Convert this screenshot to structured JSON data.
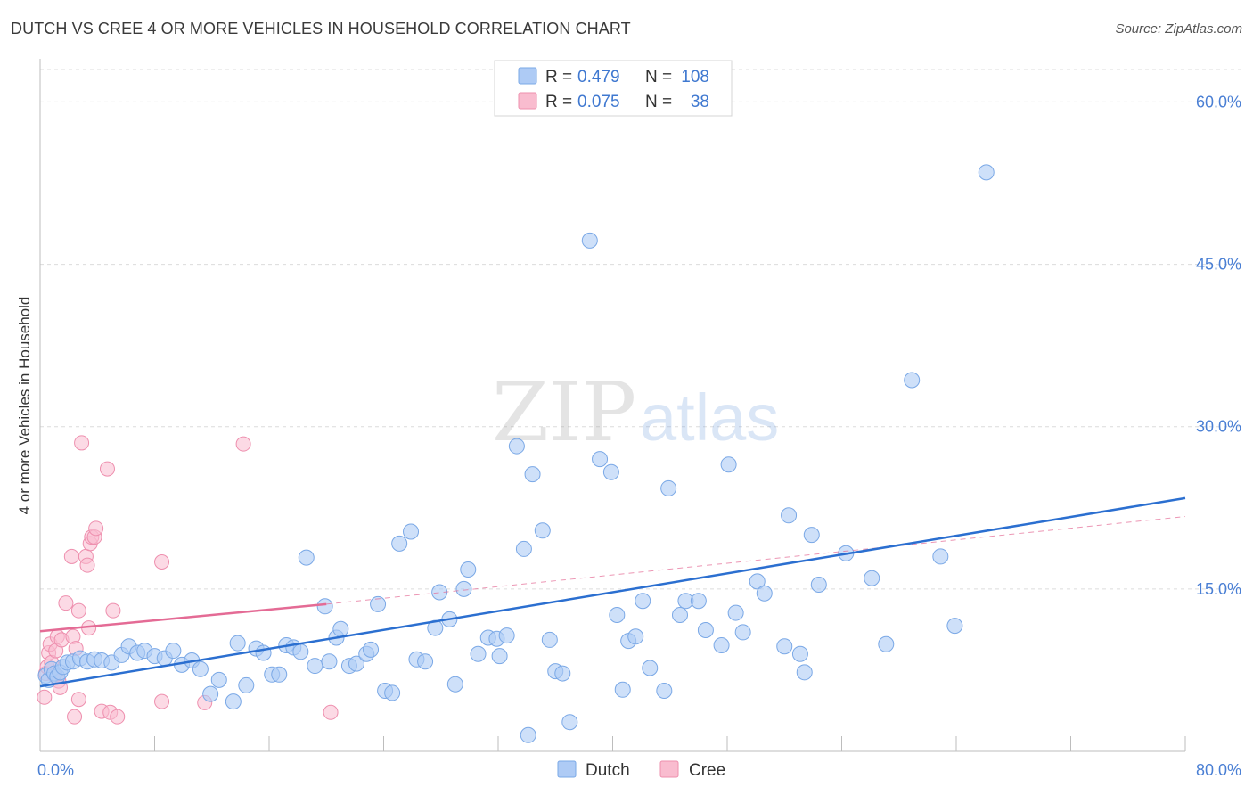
{
  "header": {
    "title": "DUTCH VS CREE 4 OR MORE VEHICLES IN HOUSEHOLD CORRELATION CHART",
    "source": "Source: ZipAtlas.com"
  },
  "watermark": {
    "zip": "ZIP",
    "atlas": "atlas"
  },
  "legend": {
    "rows": [
      {
        "r_label": "R = ",
        "r_value": "0.479",
        "n_label": "N = ",
        "n_value": "108",
        "swatch": "#aecbf5"
      },
      {
        "r_label": "R = ",
        "r_value": "0.075",
        "n_label": "N = ",
        "n_value": "38",
        "swatch": "#f9bccf"
      }
    ]
  },
  "bottom_legend": [
    "Dutch",
    "Cree"
  ],
  "colors": {
    "dutch_fill": "#aecbf5",
    "dutch_stroke": "#7aa8e6",
    "dutch_line": "#2b6fd0",
    "cree_fill": "#f9bccf",
    "cree_stroke": "#ee8fae",
    "cree_line": "#e46b95",
    "grid": "#dcdcdc",
    "accent": "#4a7fd4"
  },
  "chart_data": {
    "type": "scatter",
    "title": "DUTCH VS CREE 4 OR MORE VEHICLES IN HOUSEHOLD CORRELATION CHART",
    "xlabel": "",
    "ylabel": "4 or more Vehicles in Household",
    "xlim": [
      0,
      80
    ],
    "ylim": [
      0,
      63
    ],
    "x_tick_labels": [
      "0.0%",
      "80.0%"
    ],
    "y_ticks": [
      15,
      30,
      45,
      60
    ],
    "y_tick_labels": [
      "15.0%",
      "30.0%",
      "45.0%",
      "60.0%"
    ],
    "grid": true,
    "legend_position": "top-center",
    "series": [
      {
        "name": "Dutch",
        "r": 0.479,
        "n": 108,
        "trend": {
          "x": [
            0,
            80
          ],
          "y": [
            6.0,
            23.4
          ]
        },
        "points": [
          [
            0.4,
            7.0
          ],
          [
            0.6,
            6.6
          ],
          [
            0.8,
            7.6
          ],
          [
            1.0,
            7.2
          ],
          [
            1.2,
            6.9
          ],
          [
            1.4,
            7.3
          ],
          [
            1.6,
            7.8
          ],
          [
            1.9,
            8.2
          ],
          [
            2.3,
            8.3
          ],
          [
            2.8,
            8.6
          ],
          [
            3.3,
            8.3
          ],
          [
            3.8,
            8.5
          ],
          [
            4.3,
            8.4
          ],
          [
            5.0,
            8.2
          ],
          [
            5.7,
            8.9
          ],
          [
            6.2,
            9.7
          ],
          [
            6.8,
            9.1
          ],
          [
            7.3,
            9.3
          ],
          [
            8.0,
            8.8
          ],
          [
            8.7,
            8.6
          ],
          [
            9.3,
            9.3
          ],
          [
            9.9,
            8.0
          ],
          [
            10.6,
            8.4
          ],
          [
            11.2,
            7.6
          ],
          [
            11.9,
            5.3
          ],
          [
            12.5,
            6.6
          ],
          [
            13.5,
            4.6
          ],
          [
            13.8,
            10.0
          ],
          [
            14.4,
            6.1
          ],
          [
            15.1,
            9.5
          ],
          [
            15.6,
            9.1
          ],
          [
            16.2,
            7.1
          ],
          [
            16.7,
            7.1
          ],
          [
            17.2,
            9.8
          ],
          [
            17.7,
            9.6
          ],
          [
            18.2,
            9.2
          ],
          [
            18.6,
            17.9
          ],
          [
            19.2,
            7.9
          ],
          [
            19.9,
            13.4
          ],
          [
            20.2,
            8.3
          ],
          [
            20.7,
            10.5
          ],
          [
            21.0,
            11.3
          ],
          [
            21.6,
            7.9
          ],
          [
            22.1,
            8.1
          ],
          [
            22.8,
            9.0
          ],
          [
            23.1,
            9.4
          ],
          [
            23.6,
            13.6
          ],
          [
            24.1,
            5.6
          ],
          [
            24.6,
            5.4
          ],
          [
            25.1,
            19.2
          ],
          [
            25.9,
            20.3
          ],
          [
            26.3,
            8.5
          ],
          [
            26.9,
            8.3
          ],
          [
            27.6,
            11.4
          ],
          [
            27.9,
            14.7
          ],
          [
            28.6,
            12.2
          ],
          [
            29.0,
            6.2
          ],
          [
            29.6,
            15.0
          ],
          [
            29.9,
            16.8
          ],
          [
            30.6,
            9.0
          ],
          [
            31.3,
            10.5
          ],
          [
            31.9,
            10.4
          ],
          [
            32.1,
            8.8
          ],
          [
            32.6,
            10.7
          ],
          [
            33.3,
            28.2
          ],
          [
            33.8,
            18.7
          ],
          [
            34.1,
            1.5
          ],
          [
            34.4,
            25.6
          ],
          [
            35.1,
            20.4
          ],
          [
            35.6,
            10.3
          ],
          [
            36.0,
            7.4
          ],
          [
            36.5,
            7.2
          ],
          [
            37.0,
            2.7
          ],
          [
            38.4,
            47.2
          ],
          [
            39.1,
            27.0
          ],
          [
            39.9,
            25.8
          ],
          [
            40.3,
            12.6
          ],
          [
            40.7,
            5.7
          ],
          [
            41.1,
            10.2
          ],
          [
            41.6,
            10.6
          ],
          [
            42.1,
            13.9
          ],
          [
            42.6,
            7.7
          ],
          [
            43.6,
            5.6
          ],
          [
            43.9,
            24.3
          ],
          [
            44.7,
            12.6
          ],
          [
            45.1,
            13.9
          ],
          [
            46.0,
            13.9
          ],
          [
            46.5,
            11.2
          ],
          [
            47.6,
            9.8
          ],
          [
            48.1,
            26.5
          ],
          [
            48.6,
            12.8
          ],
          [
            49.1,
            11.0
          ],
          [
            50.1,
            15.7
          ],
          [
            50.6,
            14.6
          ],
          [
            52.0,
            9.7
          ],
          [
            52.3,
            21.8
          ],
          [
            53.1,
            9.0
          ],
          [
            53.4,
            7.3
          ],
          [
            53.9,
            20.0
          ],
          [
            54.4,
            15.4
          ],
          [
            56.3,
            18.3
          ],
          [
            58.1,
            16.0
          ],
          [
            59.1,
            9.9
          ],
          [
            60.9,
            34.3
          ],
          [
            62.9,
            18.0
          ],
          [
            63.9,
            11.6
          ],
          [
            66.1,
            53.5
          ]
        ]
      },
      {
        "name": "Cree",
        "r": 0.075,
        "n": 38,
        "trend": {
          "x": [
            0,
            20.0
          ],
          "y": [
            11.1,
            13.6
          ]
        },
        "trend_extension": {
          "x": [
            20.0,
            80
          ],
          "y": [
            13.6,
            21.7
          ]
        },
        "points": [
          [
            0.3,
            5.0
          ],
          [
            0.4,
            7.2
          ],
          [
            0.5,
            7.8
          ],
          [
            0.6,
            9.1
          ],
          [
            0.7,
            9.9
          ],
          [
            0.8,
            8.2
          ],
          [
            1.0,
            7.0
          ],
          [
            1.1,
            9.3
          ],
          [
            1.2,
            10.6
          ],
          [
            1.3,
            6.5
          ],
          [
            1.4,
            5.9
          ],
          [
            1.5,
            10.3
          ],
          [
            1.8,
            13.7
          ],
          [
            2.2,
            18.0
          ],
          [
            2.3,
            10.6
          ],
          [
            2.4,
            3.2
          ],
          [
            2.5,
            9.5
          ],
          [
            2.7,
            4.8
          ],
          [
            2.7,
            13.0
          ],
          [
            2.9,
            28.5
          ],
          [
            3.2,
            18.0
          ],
          [
            3.3,
            17.2
          ],
          [
            3.4,
            11.4
          ],
          [
            3.5,
            19.2
          ],
          [
            3.6,
            19.8
          ],
          [
            3.8,
            19.8
          ],
          [
            3.9,
            20.6
          ],
          [
            4.3,
            3.7
          ],
          [
            4.7,
            26.1
          ],
          [
            4.9,
            3.6
          ],
          [
            5.1,
            13.0
          ],
          [
            5.4,
            3.2
          ],
          [
            8.5,
            17.5
          ],
          [
            8.5,
            4.6
          ],
          [
            11.5,
            4.5
          ],
          [
            14.2,
            28.4
          ],
          [
            20.3,
            3.6
          ]
        ]
      }
    ]
  }
}
